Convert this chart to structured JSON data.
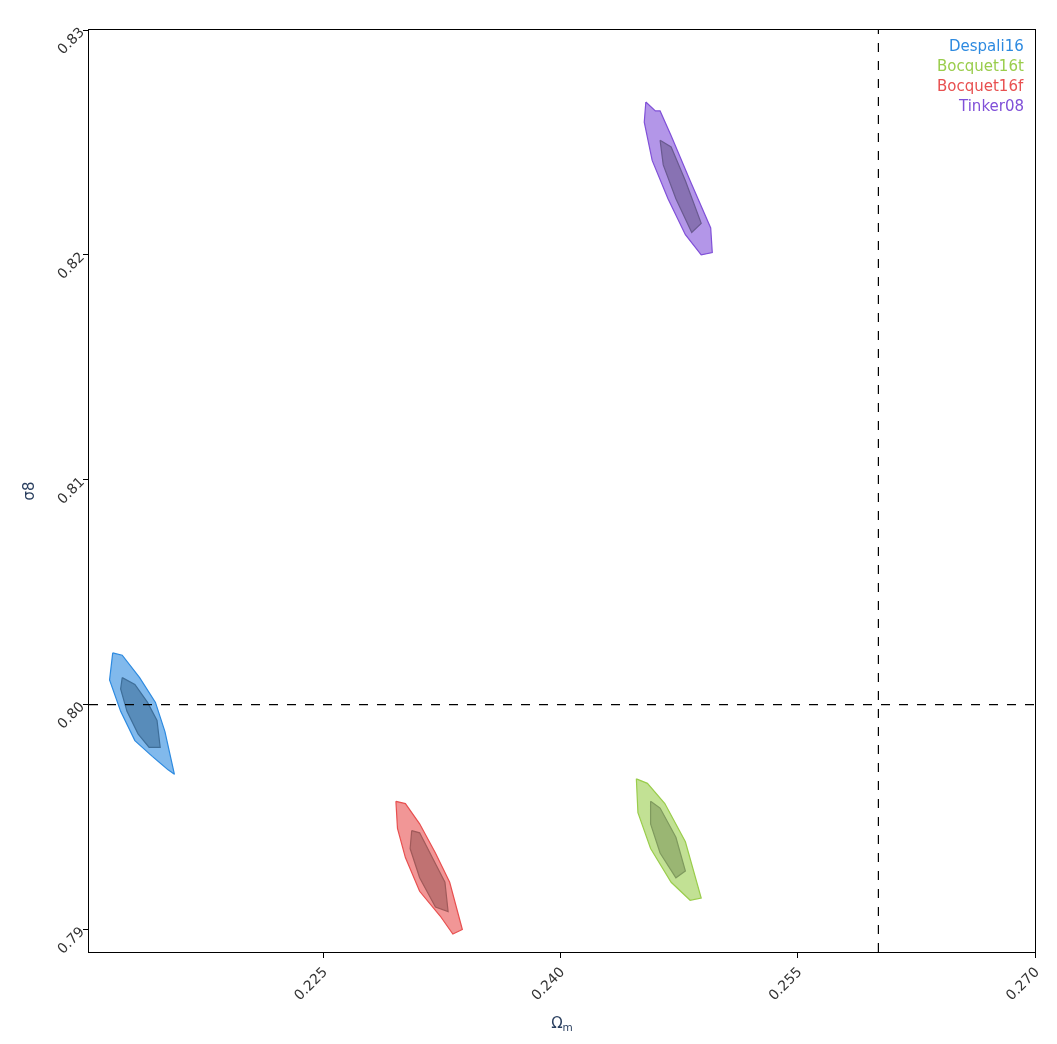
{
  "chart_data": {
    "type": "area",
    "xlabel": "Ω$_{m}$",
    "ylabel": "σ8",
    "xlim": [
      0.2102,
      0.27
    ],
    "ylim": [
      0.789,
      0.83
    ],
    "xticks": [
      {
        "value": 0.225,
        "label": "0.225"
      },
      {
        "value": 0.24,
        "label": "0.240"
      },
      {
        "value": 0.255,
        "label": "0.255"
      },
      {
        "value": 0.27,
        "label": "0.270"
      }
    ],
    "yticks": [
      {
        "value": 0.79,
        "label": "0.79"
      },
      {
        "value": 0.8,
        "label": "0.80"
      },
      {
        "value": 0.81,
        "label": "0.81"
      },
      {
        "value": 0.82,
        "label": "0.82"
      },
      {
        "value": 0.83,
        "label": "0.83"
      }
    ],
    "grid": false,
    "legend": "top right",
    "marker": "none",
    "ref_lines": [
      {
        "axis": "y",
        "value": 0.8,
        "color": "#000000",
        "line_style": "dashed"
      },
      {
        "axis": "x",
        "value": 0.2601,
        "color": "#000000",
        "line_style": "dashed"
      }
    ],
    "series": [
      {
        "name": "Despali16",
        "color": "#2d8ae0",
        "x": [
          0.2117,
          0.2123,
          0.2134,
          0.2144,
          0.215,
          0.2156,
          0.2152,
          0.2142,
          0.2131,
          0.2122,
          0.2115
        ],
        "values": [
          0.8023,
          0.8022,
          0.8012,
          0.8001,
          0.7988,
          0.7969,
          0.7971,
          0.7977,
          0.7984,
          0.7997,
          0.8011
        ]
      },
      {
        "color": "#3e6e99",
        "x": [
          0.2123,
          0.2131,
          0.2139,
          0.2145,
          0.2147,
          0.214,
          0.2133,
          0.2126,
          0.2122
        ],
        "values": [
          0.8012,
          0.8009,
          0.8001,
          0.7993,
          0.7981,
          0.7981,
          0.7987,
          0.7997,
          0.8007
        ]
      },
      {
        "name": "Bocquet16t",
        "color": "#9acd4c",
        "x": [
          0.2448,
          0.2455,
          0.2466,
          0.2479,
          0.2489,
          0.2482,
          0.247,
          0.2457,
          0.2449
        ],
        "values": [
          0.7967,
          0.7965,
          0.7956,
          0.7939,
          0.7914,
          0.7913,
          0.7921,
          0.7936,
          0.7952
        ]
      },
      {
        "color": "#7f9a5e",
        "x": [
          0.2457,
          0.2463,
          0.2473,
          0.2479,
          0.2473,
          0.2463,
          0.2457
        ],
        "values": [
          0.7957,
          0.7954,
          0.7941,
          0.7926,
          0.7923,
          0.7934,
          0.7947
        ]
      },
      {
        "name": "Bocquet16f",
        "color": "#e85050",
        "x": [
          0.2296,
          0.2302,
          0.2311,
          0.2321,
          0.233,
          0.2338,
          0.2332,
          0.2324,
          0.2311,
          0.2302,
          0.2297
        ],
        "values": [
          0.7957,
          0.7956,
          0.7947,
          0.7934,
          0.7921,
          0.79,
          0.7898,
          0.7906,
          0.7917,
          0.7932,
          0.7945
        ]
      },
      {
        "color": "#a05a5a",
        "x": [
          0.2306,
          0.2311,
          0.2319,
          0.2327,
          0.2329,
          0.2321,
          0.2311,
          0.2305
        ],
        "values": [
          0.7944,
          0.7943,
          0.7932,
          0.7921,
          0.7908,
          0.791,
          0.7923,
          0.7936
        ]
      },
      {
        "name": "Tinker08",
        "color": "#8050d8",
        "x": [
          0.2454,
          0.246,
          0.2463,
          0.247,
          0.2482,
          0.2495,
          0.2496,
          0.2489,
          0.2479,
          0.2468,
          0.2458,
          0.2453
        ],
        "values": [
          0.8268,
          0.8264,
          0.8264,
          0.8253,
          0.8233,
          0.8212,
          0.8201,
          0.82,
          0.8209,
          0.8225,
          0.8242,
          0.8259
        ]
      },
      {
        "color": "#6a5a90",
        "x": [
          0.2463,
          0.247,
          0.2479,
          0.2489,
          0.2483,
          0.2473,
          0.2465
        ],
        "values": [
          0.8251,
          0.8248,
          0.8233,
          0.8214,
          0.821,
          0.8225,
          0.824
        ]
      }
    ]
  }
}
